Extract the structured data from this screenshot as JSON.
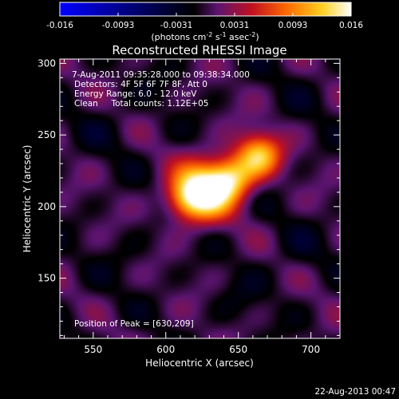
{
  "chart_data": {
    "type": "heatmap",
    "title": "Reconstructed RHESSI Image",
    "xlabel": "Heliocentric X (arcsec)",
    "ylabel": "Heliocentric Y (arcsec)",
    "xlim": [
      527,
      720
    ],
    "ylim": [
      108,
      303
    ],
    "x_ticks": [
      550,
      600,
      650,
      700
    ],
    "y_ticks": [
      150,
      200,
      250,
      300
    ],
    "colorbar": {
      "range": [
        -0.016,
        0.016
      ],
      "ticks": [
        "-0.016",
        "-0.0093",
        "-0.0031",
        "0.0031",
        "0.0093",
        "0.016"
      ],
      "unit_parts": [
        "(photons cm",
        "-2",
        " s",
        "-1",
        " asec",
        "-2",
        ")"
      ],
      "colors": [
        "#0000ff",
        "#000000",
        "#5b1470",
        "#c21020",
        "#ff6a00",
        "#ffd020",
        "#ffffff"
      ]
    },
    "info_lines": [
      "7-Aug-2011 09:35:28.000 to 09:38:34.000",
      "Detectors: 4F 5F 6F 7F 8F, Att 0",
      "Energy Range: 6.0 - 12.0 keV",
      "Clean     Total counts: 1.12E+05"
    ],
    "peak_label": "Position of Peak = [630,209]",
    "peak": [
      630,
      209
    ],
    "sources": [
      {
        "x": 626,
        "y": 211,
        "amp": 0.016,
        "sigma": 14
      },
      {
        "x": 645,
        "y": 220,
        "amp": 0.011,
        "sigma": 11
      },
      {
        "x": 664,
        "y": 236,
        "amp": 0.012,
        "sigma": 11
      },
      {
        "x": 613,
        "y": 204,
        "amp": 0.006,
        "sigma": 10
      },
      {
        "x": 560,
        "y": 255,
        "amp": -0.0014,
        "sigma": 14
      },
      {
        "x": 690,
        "y": 170,
        "amp": -0.0014,
        "sigma": 15
      },
      {
        "x": 575,
        "y": 168,
        "amp": -0.001,
        "sigma": 15
      },
      {
        "x": 650,
        "y": 135,
        "amp": -0.0012,
        "sigma": 14
      },
      {
        "x": 700,
        "y": 285,
        "amp": -0.001,
        "sigma": 16
      },
      {
        "x": 595,
        "y": 290,
        "amp": -0.0008,
        "sigma": 14
      },
      {
        "x": 540,
        "y": 120,
        "amp": -0.0008,
        "sigma": 12
      }
    ]
  },
  "footer_date": "22-Aug-2013 00:47"
}
